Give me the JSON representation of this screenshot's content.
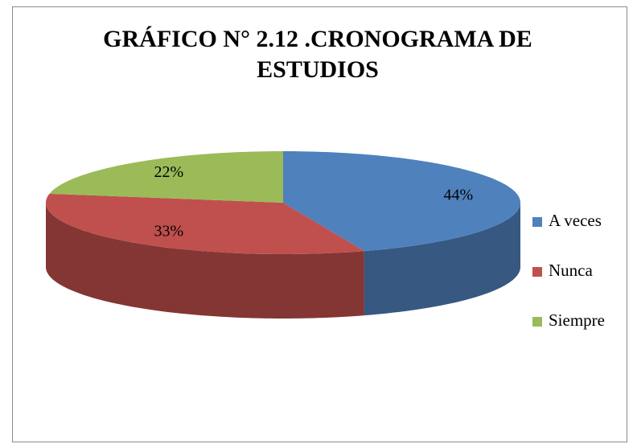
{
  "chart_data": {
    "type": "pie",
    "title": "GRÁFICO  N° 2.12 .CRONOGRAMA DE ESTUDIOS",
    "categories": [
      "A veces",
      "Nunca",
      "Siempre"
    ],
    "values": [
      44,
      33,
      22
    ],
    "value_labels": [
      "44%",
      "33%",
      "22%"
    ],
    "colors": [
      "#4f81bd",
      "#c0504d",
      "#9bbb59"
    ]
  }
}
